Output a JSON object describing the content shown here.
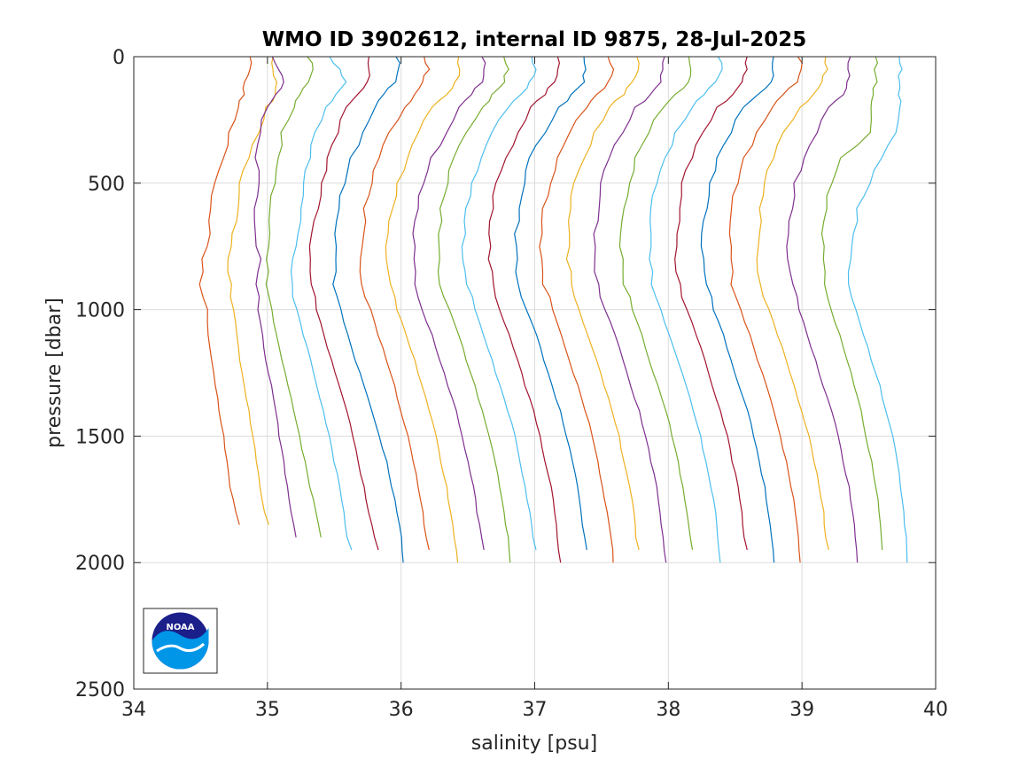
{
  "chart_data": {
    "type": "line",
    "title": "WMO ID 3902612, internal ID 9875, 28-Jul-2025",
    "xlabel": "salinity [psu]",
    "ylabel": "pressure [dbar]",
    "xlim": [
      34,
      40
    ],
    "ylim": [
      0,
      2500
    ],
    "y_reversed": true,
    "grid": true,
    "x_ticks": [
      "34",
      "35",
      "36",
      "37",
      "38",
      "39",
      "40"
    ],
    "y_ticks": [
      "0",
      "500",
      "1000",
      "1500",
      "2000",
      "2500"
    ],
    "profile_note": "each profile: salinity values at shared pressure levels",
    "pressure_levels": [
      0,
      50,
      100,
      150,
      200,
      300,
      400,
      500,
      600,
      700,
      800,
      900,
      1000,
      1100,
      1200,
      1300,
      1400,
      1500,
      1600,
      1700,
      1800,
      1900,
      2000
    ],
    "series": [
      {
        "color": "#D95319",
        "max_pressure": 1850,
        "values": [
          34.87,
          34.86,
          34.84,
          34.82,
          34.78,
          34.72,
          34.66,
          34.61,
          34.58,
          34.56,
          34.52,
          34.49,
          34.55,
          34.56,
          34.58,
          34.61,
          34.64,
          34.67,
          34.7,
          34.72,
          34.76,
          34.79,
          34.81
        ]
      },
      {
        "color": "#EDB120",
        "max_pressure": 1850,
        "values": [
          35.03,
          35.05,
          35.07,
          35.05,
          35.0,
          34.93,
          34.86,
          34.8,
          34.77,
          34.74,
          34.71,
          34.72,
          34.75,
          34.77,
          34.79,
          34.83,
          34.86,
          34.89,
          34.92,
          34.94,
          34.98,
          35.01,
          35.03
        ]
      },
      {
        "color": "#7E2F8E",
        "max_pressure": 1900,
        "values": [
          35.04,
          35.09,
          35.11,
          35.07,
          35.0,
          34.94,
          34.92,
          34.93,
          34.9,
          34.92,
          34.94,
          34.92,
          34.93,
          34.96,
          34.99,
          35.03,
          35.06,
          35.09,
          35.12,
          35.15,
          35.18,
          35.21,
          35.23
        ]
      },
      {
        "color": "#77AC30",
        "max_pressure": 1900,
        "values": [
          35.31,
          35.33,
          35.31,
          35.25,
          35.19,
          35.11,
          35.08,
          35.05,
          35.03,
          35.01,
          34.99,
          35.0,
          35.03,
          35.07,
          35.11,
          35.15,
          35.2,
          35.24,
          35.28,
          35.32,
          35.36,
          35.4,
          35.43
        ]
      },
      {
        "color": "#4DBEEE",
        "max_pressure": 1950,
        "values": [
          35.46,
          35.54,
          35.6,
          35.5,
          35.44,
          35.36,
          35.31,
          35.28,
          35.25,
          35.22,
          35.2,
          35.18,
          35.22,
          35.27,
          35.32,
          35.37,
          35.42,
          35.46,
          35.5,
          35.54,
          35.57,
          35.6,
          35.63
        ]
      },
      {
        "color": "#A2142F",
        "max_pressure": 1950,
        "values": [
          35.75,
          35.77,
          35.74,
          35.67,
          35.6,
          35.52,
          35.45,
          35.41,
          35.37,
          35.34,
          35.32,
          35.32,
          35.37,
          35.42,
          35.48,
          35.54,
          35.59,
          35.64,
          35.68,
          35.72,
          35.76,
          35.8,
          35.83
        ]
      },
      {
        "color": "#0072BD",
        "max_pressure": 2000,
        "values": [
          35.97,
          35.98,
          35.95,
          35.88,
          35.8,
          35.71,
          35.63,
          35.57,
          35.54,
          35.51,
          35.5,
          35.5,
          35.55,
          35.6,
          35.66,
          35.72,
          35.78,
          35.84,
          35.89,
          35.93,
          35.97,
          36.0,
          36.02
        ]
      },
      {
        "color": "#D95319",
        "max_pressure": 1950,
        "values": [
          36.18,
          36.2,
          36.17,
          36.1,
          36.02,
          35.92,
          35.83,
          35.78,
          35.73,
          35.71,
          35.7,
          35.71,
          35.77,
          35.83,
          35.89,
          35.95,
          36.0,
          36.05,
          36.09,
          36.13,
          36.16,
          36.19,
          36.21
        ]
      },
      {
        "color": "#EDB120",
        "max_pressure": 2000,
        "values": [
          36.42,
          36.44,
          36.41,
          36.33,
          36.24,
          36.13,
          36.04,
          35.98,
          35.93,
          35.9,
          35.9,
          35.91,
          35.97,
          36.04,
          36.1,
          36.16,
          36.21,
          36.26,
          36.3,
          36.34,
          36.37,
          36.4,
          36.42
        ]
      },
      {
        "color": "#7E2F8E",
        "max_pressure": 1950,
        "values": [
          36.6,
          36.63,
          36.6,
          36.53,
          36.44,
          36.33,
          36.23,
          36.17,
          36.12,
          36.1,
          36.09,
          36.1,
          36.16,
          36.23,
          36.29,
          36.35,
          36.41,
          36.46,
          36.5,
          36.54,
          36.57,
          36.6,
          36.62
        ]
      },
      {
        "color": "#77AC30",
        "max_pressure": 2000,
        "values": [
          36.78,
          36.8,
          36.77,
          36.69,
          36.6,
          36.49,
          36.4,
          36.34,
          36.3,
          36.28,
          36.28,
          36.3,
          36.36,
          36.43,
          36.49,
          36.55,
          36.61,
          36.66,
          36.7,
          36.74,
          36.77,
          36.8,
          36.82
        ]
      },
      {
        "color": "#4DBEEE",
        "max_pressure": 1950,
        "values": [
          36.98,
          37.0,
          36.97,
          36.89,
          36.8,
          36.69,
          36.59,
          36.53,
          36.49,
          36.47,
          36.47,
          36.49,
          36.55,
          36.62,
          36.68,
          36.74,
          36.8,
          36.85,
          36.89,
          36.93,
          36.96,
          36.99,
          37.01
        ]
      },
      {
        "color": "#A2142F",
        "max_pressure": 2000,
        "values": [
          37.16,
          37.18,
          37.15,
          37.07,
          36.98,
          36.87,
          36.78,
          36.72,
          36.68,
          36.66,
          36.66,
          36.68,
          36.74,
          36.81,
          36.87,
          36.93,
          36.99,
          37.04,
          37.08,
          37.12,
          37.15,
          37.17,
          37.19
        ]
      },
      {
        "color": "#0072BD",
        "max_pressure": 1950,
        "values": [
          37.37,
          37.39,
          37.36,
          37.28,
          37.18,
          37.07,
          36.97,
          36.92,
          36.88,
          36.86,
          36.86,
          36.88,
          36.94,
          37.01,
          37.07,
          37.13,
          37.19,
          37.24,
          37.28,
          37.32,
          37.35,
          37.37,
          37.39
        ]
      },
      {
        "color": "#D95319",
        "max_pressure": 2000,
        "values": [
          37.56,
          37.58,
          37.55,
          37.47,
          37.38,
          37.27,
          37.17,
          37.11,
          37.07,
          37.05,
          37.05,
          37.07,
          37.13,
          37.2,
          37.26,
          37.32,
          37.38,
          37.43,
          37.47,
          37.51,
          37.54,
          37.57,
          37.59
        ]
      },
      {
        "color": "#EDB120",
        "max_pressure": 1950,
        "values": [
          37.76,
          37.77,
          37.74,
          37.66,
          37.56,
          37.45,
          37.36,
          37.3,
          37.27,
          37.25,
          37.25,
          37.27,
          37.33,
          37.4,
          37.46,
          37.52,
          37.58,
          37.63,
          37.67,
          37.71,
          37.74,
          37.76,
          37.78
        ]
      },
      {
        "color": "#7E2F8E",
        "max_pressure": 2000,
        "values": [
          37.96,
          37.97,
          37.94,
          37.86,
          37.76,
          37.65,
          37.56,
          37.5,
          37.47,
          37.45,
          37.45,
          37.47,
          37.53,
          37.6,
          37.66,
          37.72,
          37.78,
          37.83,
          37.87,
          37.91,
          37.94,
          37.96,
          37.98
        ]
      },
      {
        "color": "#77AC30",
        "max_pressure": 1950,
        "values": [
          38.16,
          38.17,
          38.14,
          38.06,
          37.96,
          37.85,
          37.76,
          37.7,
          37.67,
          37.65,
          37.65,
          37.67,
          37.73,
          37.8,
          37.86,
          37.92,
          37.98,
          38.03,
          38.07,
          38.11,
          38.14,
          38.16,
          38.18
        ]
      },
      {
        "color": "#4DBEEE",
        "max_pressure": 2000,
        "values": [
          38.38,
          38.39,
          38.36,
          38.27,
          38.17,
          38.06,
          37.97,
          37.91,
          37.88,
          37.86,
          37.86,
          37.88,
          37.94,
          38.01,
          38.07,
          38.13,
          38.19,
          38.24,
          38.28,
          38.32,
          38.35,
          38.37,
          38.39
        ]
      },
      {
        "color": "#A2142F",
        "max_pressure": 1950,
        "values": [
          38.58,
          38.59,
          38.56,
          38.47,
          38.37,
          38.26,
          38.17,
          38.11,
          38.08,
          38.06,
          38.06,
          38.08,
          38.14,
          38.21,
          38.27,
          38.33,
          38.39,
          38.44,
          38.48,
          38.52,
          38.55,
          38.57,
          38.59
        ]
      },
      {
        "color": "#0072BD",
        "max_pressure": 2000,
        "values": [
          38.78,
          38.79,
          38.76,
          38.67,
          38.57,
          38.46,
          38.37,
          38.31,
          38.28,
          38.26,
          38.26,
          38.28,
          38.34,
          38.41,
          38.47,
          38.53,
          38.59,
          38.64,
          38.68,
          38.72,
          38.75,
          38.77,
          38.79
        ]
      },
      {
        "color": "#D95319",
        "max_pressure": 2000,
        "values": [
          38.98,
          38.99,
          38.96,
          38.87,
          38.77,
          38.66,
          38.57,
          38.51,
          38.48,
          38.46,
          38.46,
          38.48,
          38.54,
          38.61,
          38.67,
          38.73,
          38.79,
          38.84,
          38.88,
          38.92,
          38.95,
          38.97,
          38.99
        ]
      },
      {
        "color": "#EDB120",
        "max_pressure": 1950,
        "values": [
          39.18,
          39.18,
          39.16,
          39.08,
          38.98,
          38.87,
          38.78,
          38.72,
          38.69,
          38.67,
          38.67,
          38.69,
          38.75,
          38.82,
          38.88,
          38.94,
          39.0,
          39.05,
          39.09,
          39.13,
          39.16,
          39.18,
          39.2
        ]
      },
      {
        "color": "#7E2F8E",
        "max_pressure": 2000,
        "values": [
          39.35,
          39.35,
          39.34,
          39.3,
          39.21,
          39.11,
          39.01,
          38.95,
          38.92,
          38.9,
          38.9,
          38.92,
          38.98,
          39.04,
          39.1,
          39.16,
          39.22,
          39.27,
          39.31,
          39.35,
          39.38,
          39.4,
          39.41
        ]
      },
      {
        "color": "#77AC30",
        "max_pressure": 1950,
        "values": [
          39.55,
          39.55,
          39.55,
          39.54,
          39.52,
          39.5,
          39.3,
          39.22,
          39.18,
          39.16,
          39.15,
          39.17,
          39.22,
          39.28,
          39.34,
          39.39,
          39.44,
          39.48,
          39.52,
          39.55,
          39.58,
          39.59,
          39.6
        ]
      },
      {
        "color": "#4DBEEE",
        "max_pressure": 2000,
        "values": [
          39.74,
          39.74,
          39.73,
          39.73,
          39.72,
          39.71,
          39.6,
          39.5,
          39.42,
          39.38,
          39.36,
          39.36,
          39.4,
          39.46,
          39.52,
          39.58,
          39.63,
          39.68,
          39.71,
          39.74,
          39.76,
          39.78,
          39.79
        ]
      }
    ]
  },
  "logo": {
    "text": "NOAA",
    "colors": {
      "navy": "#1B1F8A",
      "sky": "#0096E8"
    }
  }
}
